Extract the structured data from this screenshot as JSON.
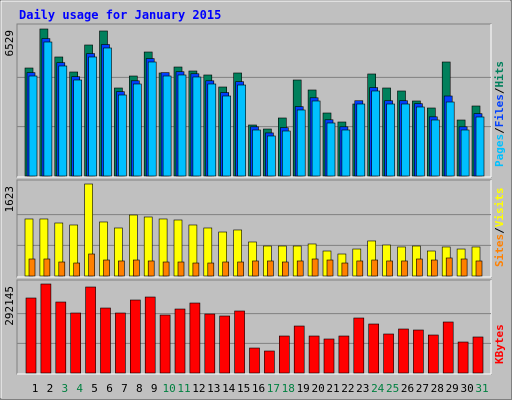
{
  "chart_data": {
    "type": "bar",
    "title": "Daily usage for January 2015",
    "categories": [
      "1",
      "2",
      "3",
      "4",
      "5",
      "6",
      "7",
      "8",
      "9",
      "10",
      "11",
      "12",
      "13",
      "14",
      "15",
      "16",
      "17",
      "18",
      "19",
      "20",
      "21",
      "22",
      "23",
      "24",
      "25",
      "26",
      "27",
      "28",
      "29",
      "30",
      "31"
    ],
    "category_colors": [
      "#000000",
      "#000000",
      "#008040",
      "#008040",
      "#000000",
      "#000000",
      "#000000",
      "#000000",
      "#000000",
      "#008040",
      "#008040",
      "#000000",
      "#000000",
      "#000000",
      "#000000",
      "#000000",
      "#008040",
      "#008040",
      "#000000",
      "#000000",
      "#000000",
      "#000000",
      "#000000",
      "#008040",
      "#008040",
      "#000000",
      "#000000",
      "#000000",
      "#000000",
      "#000000",
      "#008040"
    ],
    "separator": "/",
    "panels": [
      {
        "ylim": [
          0,
          6529
        ],
        "yticks": [
          6529
        ],
        "legend_order": [
          2,
          1,
          0
        ],
        "series": [
          {
            "name": "Hits",
            "color": "#00805c",
            "values": [
              4764,
              6485,
              5250,
              4588,
              5779,
              6397,
              3882,
              4411,
              5470,
              4544,
              4808,
              4632,
              4456,
              3926,
              4544,
              2250,
              2073,
              2559,
              4235,
              3794,
              2779,
              2382,
              3176,
              4500,
              3882,
              3750,
              3309,
              3000,
              5029,
              2470,
              3088
            ]
          },
          {
            "name": "Files",
            "color": "#0040ff",
            "values": [
              4560,
              6060,
              5000,
              4380,
              5400,
              5800,
              3720,
              4200,
              5180,
              4560,
              4600,
              4510,
              4200,
              3680,
              4160,
              2170,
              1900,
              2130,
              3060,
              3450,
              2480,
              2170,
              3320,
              3900,
              3320,
              3320,
              3190,
              2610,
              3529,
              2170,
              2750
            ]
          },
          {
            "name": "Pages",
            "color": "#00c0ff",
            "values": [
              4411,
              5911,
              4853,
              4235,
              5250,
              5647,
              3573,
              4059,
              5029,
              4411,
              4456,
              4367,
              4059,
              3529,
              4014,
              2029,
              1765,
              1985,
              2912,
              3309,
              2338,
              2029,
              3176,
              3750,
              3176,
              3176,
              3044,
              2470,
              3264,
              2029,
              2603
            ]
          }
        ]
      },
      {
        "ylim": [
          0,
          1623
        ],
        "yticks": [
          1623
        ],
        "legend_order": [
          1,
          0
        ],
        "series": [
          {
            "name": "Visits",
            "color": "#ffff00",
            "values": [
              1006,
              1006,
              935,
              900,
              1623,
              953,
              847,
              1076,
              1041,
              1006,
              988,
              900,
              847,
              776,
              812,
              600,
              529,
              529,
              529,
              565,
              441,
              388,
              476,
              618,
              547,
              512,
              529,
              441,
              512,
              476,
              512
            ]
          },
          {
            "name": "Sites",
            "color": "#ff8000",
            "values": [
              300,
              300,
              247,
              229,
              388,
              282,
              265,
              282,
              265,
              247,
              247,
              229,
              229,
              247,
              247,
              265,
              265,
              247,
              265,
              300,
              282,
              229,
              265,
              282,
              265,
              265,
              300,
              282,
              318,
              300,
              265
            ]
          }
        ]
      },
      {
        "ylim": [
          0,
          292145
        ],
        "yticks": [
          292145
        ],
        "legend_order": [
          0
        ],
        "series": [
          {
            "name": "KBytes",
            "color": "#ff0000",
            "values": [
              246150,
              292145,
              233000,
              196900,
              282250,
              213300,
              196900,
              239600,
              249400,
              190300,
              210000,
              229700,
              193600,
              187100,
              203500,
              82000,
              72200,
              121400,
              154200,
              121400,
              111600,
              121400,
              180500,
              160800,
              128000,
              144400,
              141100,
              124700,
              167400,
              101700,
              118200
            ]
          }
        ]
      }
    ]
  }
}
